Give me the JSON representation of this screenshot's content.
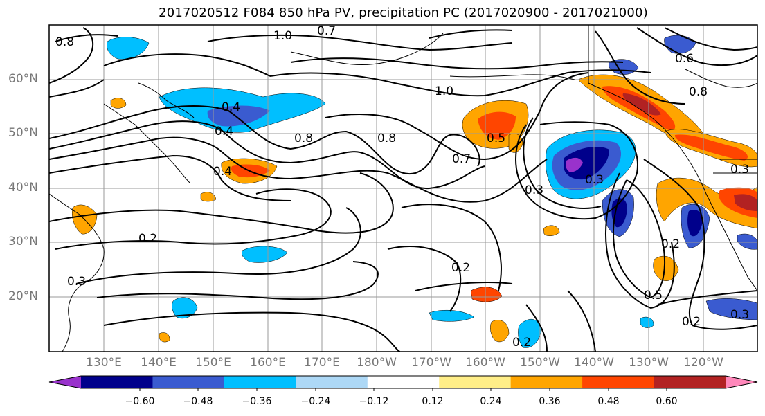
{
  "title": "2017020512 F084 850 hPa PV, precipitation PC (2017020900 - 2017021000)",
  "latitude_labels": [
    "60°N",
    "50°N",
    "40°N",
    "30°N",
    "20°N"
  ],
  "longitude_labels": [
    "130°E",
    "140°E",
    "150°E",
    "160°E",
    "170°E",
    "180°W",
    "170°W",
    "160°W",
    "150°W",
    "140°W",
    "130°W",
    "120°W"
  ],
  "contour_labels": [
    "0.8",
    "1.0",
    "0.7",
    "0.4",
    "0.4",
    "0.8",
    "0.4",
    "0.2",
    "1.0",
    "0.8",
    "0.7",
    "0.5",
    "0.3",
    "0.2",
    "0.2",
    "0.3",
    "0.2",
    "0.2",
    "0.3",
    "0.5",
    "0.8",
    "0.3",
    "0.3",
    "0.6"
  ],
  "colorbar": {
    "ticks": [
      "−0.60",
      "−0.48",
      "−0.36",
      "−0.24",
      "−0.12",
      "0.12",
      "0.24",
      "0.36",
      "0.48",
      "0.60"
    ],
    "colors": [
      "#9932CC",
      "#00008B",
      "#3A5BD0",
      "#00BFFF",
      "#ADD8F6",
      "#FFFFFF",
      "#FFEE88",
      "#FFA500",
      "#FF4500",
      "#B22222",
      "#FF88BB"
    ]
  },
  "map_colors": {
    "frame": "#000000",
    "grid": "#9a9a9a",
    "contour": "#000000"
  }
}
